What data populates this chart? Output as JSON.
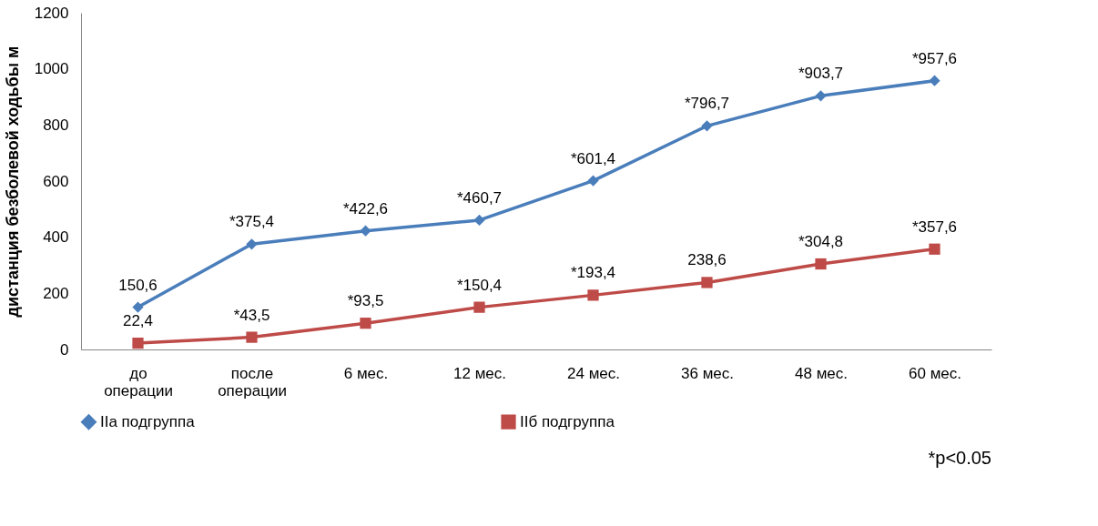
{
  "chart_data": {
    "type": "line",
    "ylabel": "дистанция безболевой ходьбы м",
    "categories": [
      "до операции",
      "после операции",
      "6 мес.",
      "12 мес.",
      "24 мес.",
      "36 мес.",
      "48 мес.",
      "60 мес."
    ],
    "series": [
      {
        "name": "IIа подгруппа",
        "color": "#4a7ebb",
        "marker": "diamond",
        "values": [
          150.6,
          375.4,
          422.6,
          460.7,
          601.4,
          796.7,
          903.7,
          957.6
        ],
        "value_labels": [
          "150,6",
          "*375,4",
          "*422,6",
          "*460,7",
          "*601,4",
          "*796,7",
          "*903,7",
          "*957,6"
        ]
      },
      {
        "name": "IIб подгруппа",
        "color": "#be4b48",
        "marker": "square",
        "values": [
          22.4,
          43.5,
          93.5,
          150.4,
          193.4,
          238.6,
          304.8,
          357.6
        ],
        "value_labels": [
          "22,4",
          "*43,5",
          "*93,5",
          "*150,4",
          "*193,4",
          "238,6",
          "*304,8",
          "*357,6"
        ]
      }
    ],
    "ylim": [
      0,
      1200
    ],
    "yticks": [
      0,
      200,
      400,
      600,
      800,
      1000,
      1200
    ],
    "grid": false,
    "legend": "bottom",
    "annotations": [
      "*p<0.05"
    ]
  }
}
